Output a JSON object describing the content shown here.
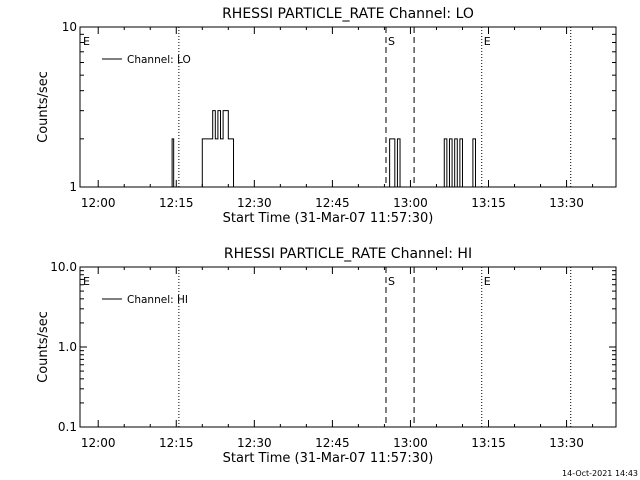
{
  "footer": {
    "timestamp": "14-Oct-2021 14:43"
  },
  "chart_data": [
    {
      "type": "line",
      "title": "RHESSI PARTICLE_RATE Channel: LO",
      "xlabel": "Start Time (31-Mar-07 11:57:30)",
      "ylabel": "Counts/sec",
      "x_unit": "minutes after 12:00",
      "xlim": [
        -3.5,
        99.5
      ],
      "ylim": [
        1,
        10
      ],
      "yscale": "log",
      "xticks": [
        0,
        15,
        30,
        45,
        60,
        75,
        90
      ],
      "xtick_labels": [
        "12:00",
        "12:15",
        "12:30",
        "12:45",
        "13:00",
        "13:15",
        "13:30"
      ],
      "yticks": [
        1,
        10
      ],
      "ytick_labels": [
        "1",
        "10"
      ],
      "legend": {
        "label": "Channel: LO",
        "placement": "top-left"
      },
      "markers": [
        {
          "label": "E",
          "x": -3.3,
          "style": "none"
        },
        {
          "label": "",
          "x": 15.5,
          "style": "dotted"
        },
        {
          "label": "S",
          "x": 55.3,
          "style": "dashed"
        },
        {
          "label": "",
          "x": 60.7,
          "style": "dashed"
        },
        {
          "label": "E",
          "x": 73.7,
          "style": "dotted"
        },
        {
          "label": "",
          "x": 90.8,
          "style": "dotted"
        }
      ],
      "series": [
        {
          "name": "Channel: LO",
          "points": [
            [
              0,
              1
            ],
            [
              13.9,
              1
            ],
            [
              14.2,
              2
            ],
            [
              14.5,
              1
            ],
            [
              19.5,
              1
            ],
            [
              20,
              2
            ],
            [
              21.5,
              2
            ],
            [
              22,
              3
            ],
            [
              22.5,
              2
            ],
            [
              23,
              3
            ],
            [
              23.5,
              2
            ],
            [
              24,
              3
            ],
            [
              24.5,
              3
            ],
            [
              25,
              2
            ],
            [
              25.5,
              2
            ],
            [
              26,
              1
            ],
            [
              55.3,
              1
            ],
            [
              56,
              2
            ],
            [
              56.5,
              2
            ],
            [
              57,
              1
            ],
            [
              57.5,
              2
            ],
            [
              58,
              1
            ],
            [
              66,
              1
            ],
            [
              66.5,
              2
            ],
            [
              67,
              1
            ],
            [
              67.5,
              2
            ],
            [
              68,
              1
            ],
            [
              68.5,
              2
            ],
            [
              69,
              1
            ],
            [
              69.5,
              2
            ],
            [
              70,
              1
            ],
            [
              71.5,
              1
            ],
            [
              72,
              2
            ],
            [
              72.5,
              1
            ],
            [
              73.5,
              1
            ]
          ]
        }
      ]
    },
    {
      "type": "line",
      "title": "RHESSI PARTICLE_RATE Channel: HI",
      "xlabel": "Start Time (31-Mar-07 11:57:30)",
      "ylabel": "Counts/sec",
      "x_unit": "minutes after 12:00",
      "xlim": [
        -3.5,
        99.5
      ],
      "ylim": [
        0.1,
        10
      ],
      "yscale": "log",
      "xticks": [
        0,
        15,
        30,
        45,
        60,
        75,
        90
      ],
      "xtick_labels": [
        "12:00",
        "12:15",
        "12:30",
        "12:45",
        "13:00",
        "13:15",
        "13:30"
      ],
      "yticks": [
        0.1,
        1,
        10
      ],
      "ytick_labels": [
        "0.1",
        "1.0",
        "10.0"
      ],
      "legend": {
        "label": "Channel: HI",
        "placement": "top-left"
      },
      "markers": [
        {
          "label": "E",
          "x": -3.3,
          "style": "none"
        },
        {
          "label": "",
          "x": 15.5,
          "style": "dotted"
        },
        {
          "label": "S",
          "x": 55.3,
          "style": "dashed"
        },
        {
          "label": "",
          "x": 60.7,
          "style": "dashed"
        },
        {
          "label": "E",
          "x": 73.7,
          "style": "dotted"
        },
        {
          "label": "",
          "x": 90.8,
          "style": "dotted"
        }
      ],
      "series": [
        {
          "name": "Channel: HI",
          "points": []
        }
      ]
    }
  ]
}
